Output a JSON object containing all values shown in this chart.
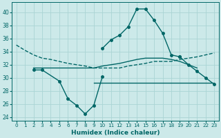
{
  "xlabel": "Humidex (Indice chaleur)",
  "background_color": "#cce9e9",
  "grid_color": "#aad4d4",
  "line_color": "#006666",
  "xlim": [
    -0.5,
    23.5
  ],
  "ylim": [
    23.5,
    41.5
  ],
  "yticks": [
    24,
    26,
    28,
    30,
    32,
    34,
    36,
    38,
    40
  ],
  "xticks": [
    0,
    1,
    2,
    3,
    4,
    5,
    6,
    7,
    8,
    9,
    10,
    11,
    12,
    13,
    14,
    15,
    16,
    17,
    18,
    19,
    20,
    21,
    22,
    23
  ],
  "curve_top_dashed": {
    "x": [
      0,
      1,
      2,
      3,
      4,
      5,
      6,
      7,
      8,
      9,
      10,
      11,
      12,
      13,
      14,
      15,
      16,
      17,
      18,
      19,
      20,
      21,
      22,
      23
    ],
    "y": [
      35.0,
      34.2,
      33.5,
      33.0,
      32.8,
      32.5,
      32.2,
      32.0,
      31.8,
      31.5,
      31.5,
      31.5,
      31.5,
      31.8,
      32.0,
      32.2,
      32.5,
      32.5,
      32.5,
      32.8,
      33.0,
      33.2,
      33.5,
      33.8
    ]
  },
  "curve_bottom_v": {
    "x": [
      0,
      1,
      2,
      3,
      4,
      5,
      6,
      7,
      8,
      9,
      10,
      11,
      12,
      13,
      14,
      15,
      16,
      17,
      18,
      19,
      20,
      21,
      22,
      23
    ],
    "y": [
      null,
      null,
      31.2,
      31.2,
      null,
      29.5,
      26.8,
      25.8,
      24.5,
      25.8,
      30.2,
      null,
      null,
      null,
      null,
      null,
      null,
      null,
      null,
      null,
      null,
      null,
      null,
      null
    ]
  },
  "curve_flat_min": {
    "x": [
      9,
      10,
      11,
      12,
      13,
      14,
      15,
      16,
      17,
      18,
      19,
      20,
      21,
      22,
      23
    ],
    "y": [
      29.2,
      29.2,
      29.2,
      29.2,
      29.2,
      29.2,
      29.2,
      29.2,
      29.2,
      29.2,
      29.2,
      29.2,
      29.2,
      29.2,
      29.2
    ]
  },
  "curve_middle": {
    "x": [
      0,
      1,
      2,
      3,
      4,
      5,
      6,
      7,
      8,
      9,
      10,
      11,
      12,
      13,
      14,
      15,
      16,
      17,
      18,
      19,
      20,
      21,
      22,
      23
    ],
    "y": [
      null,
      null,
      31.5,
      31.5,
      31.5,
      31.5,
      31.5,
      31.5,
      31.5,
      31.5,
      31.8,
      32.0,
      32.2,
      32.5,
      32.8,
      33.0,
      33.0,
      33.0,
      32.8,
      32.5,
      32.0,
      31.5,
      null,
      null
    ]
  },
  "curve_peak": {
    "x": [
      10,
      11,
      12,
      13,
      14,
      15,
      16,
      17,
      18,
      19
    ],
    "y": [
      34.5,
      35.8,
      36.5,
      37.8,
      40.5,
      40.5,
      38.8,
      36.8,
      33.5,
      33.2
    ]
  },
  "curve_end": {
    "x": [
      19,
      20,
      21,
      22,
      23
    ],
    "y": [
      33.2,
      32.0,
      31.0,
      30.0,
      29.0
    ]
  }
}
